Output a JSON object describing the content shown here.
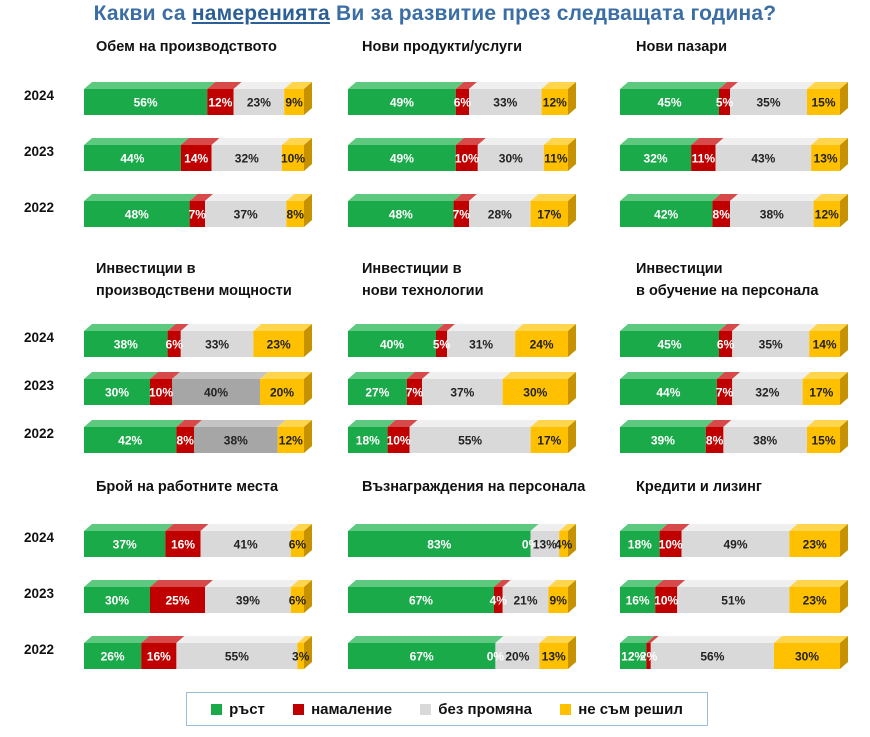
{
  "title_parts": [
    "Какви са ",
    "намеренията",
    " Ви за развитие през следващата година?"
  ],
  "chart_data": [
    {
      "type": "bar",
      "title": "Обем на производството",
      "categories": [
        "2024",
        "2023",
        "2022"
      ],
      "series": [
        {
          "name": "ръст",
          "values": [
            56,
            44,
            48
          ]
        },
        {
          "name": "намаление",
          "values": [
            12,
            14,
            7
          ]
        },
        {
          "name": "без промяна",
          "values": [
            23,
            32,
            37
          ]
        },
        {
          "name": "не съм решил",
          "values": [
            9,
            10,
            8
          ]
        }
      ]
    },
    {
      "type": "bar",
      "title": "Нови продукти/услуги",
      "categories": [
        "2024",
        "2023",
        "2022"
      ],
      "series": [
        {
          "name": "ръст",
          "values": [
            49,
            49,
            48
          ]
        },
        {
          "name": "намаление",
          "values": [
            6,
            10,
            7
          ]
        },
        {
          "name": "без промяна",
          "values": [
            33,
            30,
            28
          ]
        },
        {
          "name": "не съм решил",
          "values": [
            12,
            11,
            17
          ]
        }
      ]
    },
    {
      "type": "bar",
      "title": "Нови пазари",
      "categories": [
        "2024",
        "2023",
        "2022"
      ],
      "series": [
        {
          "name": "ръст",
          "values": [
            45,
            32,
            42
          ]
        },
        {
          "name": "намаление",
          "values": [
            5,
            11,
            8
          ]
        },
        {
          "name": "без промяна",
          "values": [
            35,
            43,
            38
          ]
        },
        {
          "name": "не съм решил",
          "values": [
            15,
            13,
            12
          ]
        }
      ]
    },
    {
      "type": "bar",
      "title": "Инвестиции в\nпроизводствени мощности",
      "categories": [
        "2024",
        "2023",
        "2022"
      ],
      "series": [
        {
          "name": "ръст",
          "values": [
            38,
            30,
            42
          ]
        },
        {
          "name": "намаление",
          "values": [
            6,
            10,
            8
          ]
        },
        {
          "name": "без промяна",
          "values": [
            33,
            40,
            38
          ]
        },
        {
          "name": "не съм решил",
          "values": [
            23,
            20,
            12
          ]
        }
      ]
    },
    {
      "type": "bar",
      "title": "Инвестиции в\nнови технологии",
      "categories": [
        "2024",
        "2023",
        "2022"
      ],
      "series": [
        {
          "name": "ръст",
          "values": [
            40,
            27,
            18
          ]
        },
        {
          "name": "намаление",
          "values": [
            5,
            7,
            10
          ]
        },
        {
          "name": "без промяна",
          "values": [
            31,
            37,
            55
          ]
        },
        {
          "name": "не съм решил",
          "values": [
            24,
            30,
            17
          ]
        }
      ]
    },
    {
      "type": "bar",
      "title": "Инвестиции\nв обучение на персонала",
      "categories": [
        "2024",
        "2023",
        "2022"
      ],
      "series": [
        {
          "name": "ръст",
          "values": [
            45,
            44,
            39
          ]
        },
        {
          "name": "намаление",
          "values": [
            6,
            7,
            8
          ]
        },
        {
          "name": "без промяна",
          "values": [
            35,
            32,
            38
          ]
        },
        {
          "name": "не съм решил",
          "values": [
            14,
            17,
            15
          ]
        }
      ]
    },
    {
      "type": "bar",
      "title": "Брой на работните места",
      "categories": [
        "2024",
        "2023",
        "2022"
      ],
      "series": [
        {
          "name": "ръст",
          "values": [
            37,
            30,
            26
          ]
        },
        {
          "name": "намаление",
          "values": [
            16,
            25,
            16
          ]
        },
        {
          "name": "без промяна",
          "values": [
            41,
            39,
            55
          ]
        },
        {
          "name": "не съм решил",
          "values": [
            6,
            6,
            3
          ]
        }
      ]
    },
    {
      "type": "bar",
      "title": "Възнаграждения на персонала",
      "categories": [
        "2024",
        "2023",
        "2022"
      ],
      "series": [
        {
          "name": "ръст",
          "values": [
            83,
            67,
            67
          ]
        },
        {
          "name": "намаление",
          "values": [
            0,
            4,
            0
          ]
        },
        {
          "name": "без промяна",
          "values": [
            13,
            21,
            20
          ]
        },
        {
          "name": "не съм решил",
          "values": [
            4,
            9,
            13
          ]
        }
      ]
    },
    {
      "type": "bar",
      "title": "Кредити и лизинг",
      "categories": [
        "2024",
        "2023",
        "2022"
      ],
      "series": [
        {
          "name": "ръст",
          "values": [
            18,
            16,
            12
          ]
        },
        {
          "name": "намаление",
          "values": [
            10,
            10,
            2
          ]
        },
        {
          "name": "без промяна",
          "values": [
            49,
            51,
            56
          ]
        },
        {
          "name": "не съм решил",
          "values": [
            23,
            23,
            30
          ]
        }
      ]
    }
  ],
  "legend": [
    {
      "label": "ръст",
      "color": "#1aaa4a"
    },
    {
      "label": "намаление",
      "color": "#c00000"
    },
    {
      "label": "без промяна",
      "color": "#d9d9d9"
    },
    {
      "label": "не съм решил",
      "color": "#ffc000"
    }
  ],
  "colors": {
    "front": [
      "#1aaa4a",
      "#c00000",
      "#d9d9d9",
      "#ffc000"
    ],
    "top": [
      "#5cc97f",
      "#d84a4a",
      "#efefef",
      "#ffd54d"
    ],
    "side": [
      "#10803a",
      "#8a0000",
      "#a6a6a6",
      "#c79200"
    ],
    "grey_variant_front": "#a6a6a6",
    "grey_variant_top": "#c4c4c4",
    "grey_variant_side": "#7f7f7f"
  }
}
